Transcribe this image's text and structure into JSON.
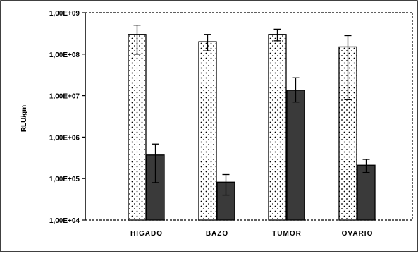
{
  "chart_data": {
    "type": "bar",
    "yscale": "log",
    "ylim": [
      10000,
      1000000000
    ],
    "ylabel": "RLU/gm",
    "xlabel": "",
    "title": "",
    "ytick_values": [
      10000,
      100000,
      1000000,
      10000000,
      100000000,
      1000000000
    ],
    "ytick_labels": [
      "1,00E+04",
      "1,00E+05",
      "1,00E+06",
      "1,00E+07",
      "1,00E+08",
      "1,00E+09"
    ],
    "categories": [
      "HIGADO",
      "BAZO",
      "TUMOR",
      "OVARIO"
    ],
    "series": [
      {
        "style": "dotted-white",
        "values": [
          300000000,
          200000000,
          300000000,
          150000000
        ],
        "err_low": [
          100000000,
          120000000,
          210000000,
          8000000
        ],
        "err_high": [
          500000000,
          300000000,
          400000000,
          280000000
        ]
      },
      {
        "style": "solid-dark",
        "values": [
          370000,
          82000,
          13500000,
          210000
        ],
        "err_low": [
          80000,
          40000,
          7000000,
          140000
        ],
        "err_high": [
          680000,
          125000,
          27000000,
          290000
        ]
      }
    ],
    "grid": false,
    "colors": {
      "dark_bar": "#3a3a3a",
      "light_bar": "#ffffff",
      "outline": "#000000"
    }
  }
}
